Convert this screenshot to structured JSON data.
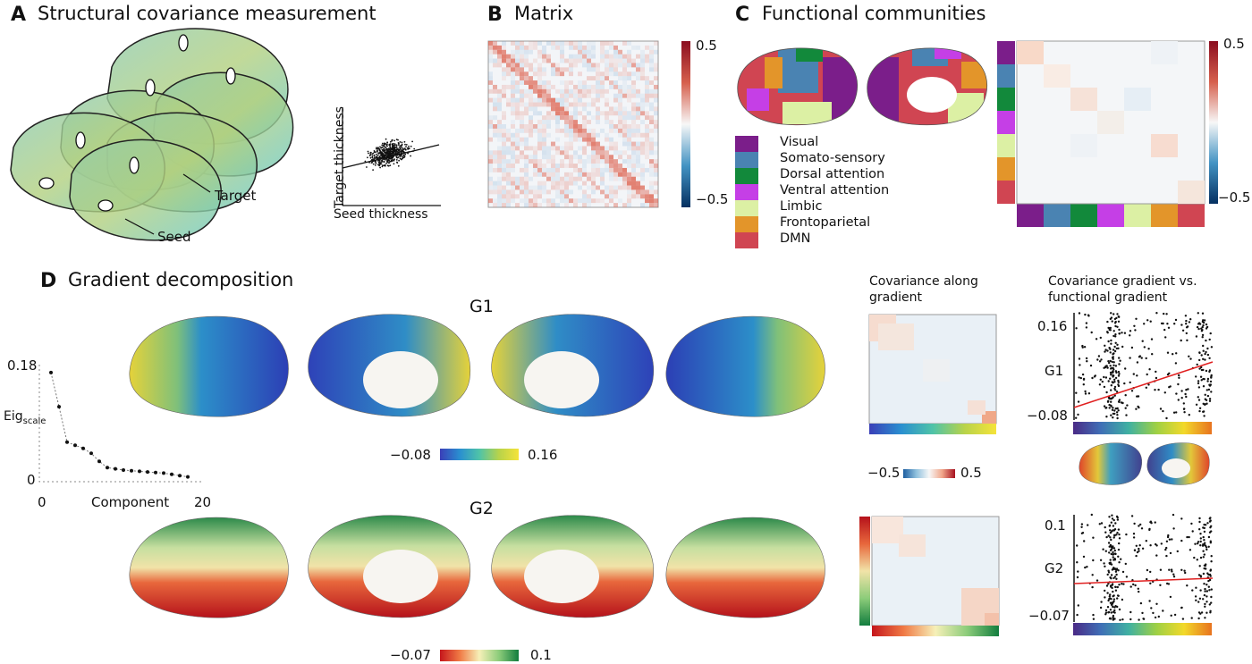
{
  "panels": {
    "a": {
      "letter": "A",
      "title": "Structural covariance measurement",
      "scatter_ylabel": "Target thickness",
      "scatter_xlabel": "Seed thickness",
      "label_target": "Target",
      "label_seed": "Seed"
    },
    "b": {
      "letter": "B",
      "title": "Matrix",
      "cbar_max": "0.5",
      "cbar_min": "−0.5"
    },
    "c": {
      "letter": "C",
      "title": "Functional communities",
      "cbar_max": "0.5",
      "cbar_min": "−0.5",
      "communities": [
        {
          "name": "Visual",
          "color": "#7b1e8a"
        },
        {
          "name": "Somato-sensory",
          "color": "#4a83b2"
        },
        {
          "name": "Dorsal attention",
          "color": "#12893b"
        },
        {
          "name": "Ventral attention",
          "color": "#c53fe6"
        },
        {
          "name": "Limbic",
          "color": "#dcf0a4"
        },
        {
          "name": "Frontoparietal",
          "color": "#e3952a"
        },
        {
          "name": "DMN",
          "color": "#d04552"
        }
      ]
    },
    "d": {
      "letter": "D",
      "title": "Gradient decomposition",
      "g1_label": "G1",
      "g2_label": "G2",
      "g1_cbar_min": "−0.08",
      "g1_cbar_max": "0.16",
      "g2_cbar_min": "−0.07",
      "g2_cbar_max": "0.1",
      "eig_ylabel": "Eig",
      "eig_ylabel_sub": "scale",
      "eig_xlabel": "Component",
      "eig_ytick_top": "0.18",
      "eig_ytick_bottom": "0",
      "eig_xtick_left": "0",
      "eig_xtick_right": "20",
      "cov_along_title_1": "Covariance along",
      "cov_along_title_2": "gradient",
      "cov_cbar_min": "−0.5",
      "cov_cbar_max": "0.5",
      "cov_vs_title_1": "Covariance gradient vs.",
      "cov_vs_title_2": "functional gradient",
      "g1_scatter_ytop": "0.16",
      "g1_scatter_ymid": "G1",
      "g1_scatter_ybot": "−0.08",
      "g2_scatter_ytop": "0.1",
      "g2_scatter_ymid": "G2",
      "g2_scatter_ybot": "−0.07"
    }
  },
  "chart_data": [
    {
      "type": "line",
      "x": [
        1,
        2,
        3,
        4,
        5,
        6,
        7,
        8,
        9,
        10,
        11,
        12,
        13,
        14,
        15,
        16,
        17,
        18
      ],
      "values": [
        0.17,
        0.115,
        0.058,
        0.053,
        0.048,
        0.04,
        0.027,
        0.017,
        0.015,
        0.013,
        0.012,
        0.011,
        0.01,
        0.009,
        0.008,
        0.006,
        0.004,
        0.002
      ],
      "xlabel": "Component",
      "ylabel": "Eig scale",
      "xlim": [
        0,
        20
      ],
      "ylim": [
        0,
        0.18
      ]
    }
  ]
}
